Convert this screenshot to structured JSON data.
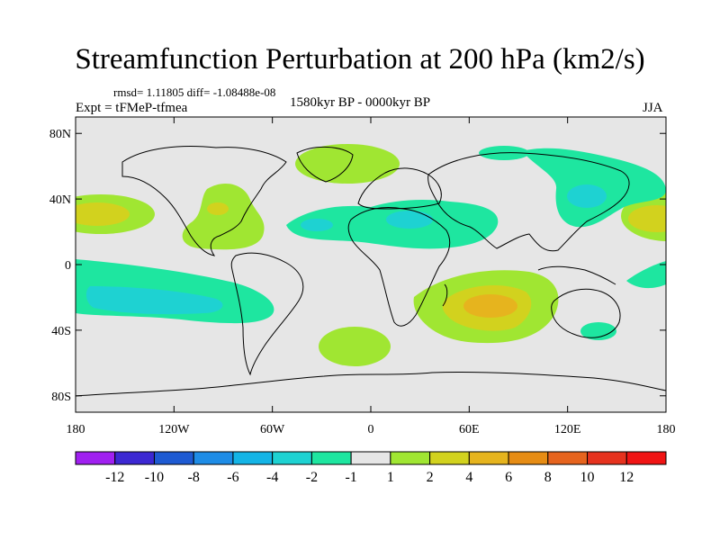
{
  "title": "Streamfunction Perturbation at 200 hPa (km2/s)",
  "stats": "rmsd= 1.11805 diff= -1.08488e-08",
  "experiment": "Expt = tFMeP-tfmea",
  "period": "1580kyr BP - 0000kyr BP",
  "season": "JJA",
  "map": {
    "lon_range": [
      -180,
      180
    ],
    "lat_range": [
      -90,
      90
    ],
    "lat_ticks": [
      {
        "value": 80,
        "label": "80N"
      },
      {
        "value": 40,
        "label": "40N"
      },
      {
        "value": 0,
        "label": "0"
      },
      {
        "value": -40,
        "label": "40S"
      },
      {
        "value": -80,
        "label": "80S"
      }
    ],
    "lon_ticks": [
      {
        "value": -180,
        "label": "180"
      },
      {
        "value": -120,
        "label": "120W"
      },
      {
        "value": -60,
        "label": "60W"
      },
      {
        "value": 0,
        "label": "0"
      },
      {
        "value": 60,
        "label": "60E"
      },
      {
        "value": 120,
        "label": "120E"
      },
      {
        "value": 180,
        "label": "180"
      }
    ],
    "background_color": "#e6e6e6"
  },
  "colorbar": {
    "colors": [
      "#a020f0",
      "#3c28d2",
      "#1e5ad2",
      "#1e8ce6",
      "#14b4e6",
      "#1ed2d2",
      "#1ee6a0",
      "#e6e6e6",
      "#a0e632",
      "#d2d21e",
      "#e6b41e",
      "#e68c14",
      "#e6641e",
      "#e6321e",
      "#f01414"
    ],
    "labels": [
      "-12",
      "-10",
      "-8",
      "-6",
      "-4",
      "-2",
      "-1",
      "1",
      "2",
      "4",
      "6",
      "8",
      "10",
      "12"
    ]
  }
}
